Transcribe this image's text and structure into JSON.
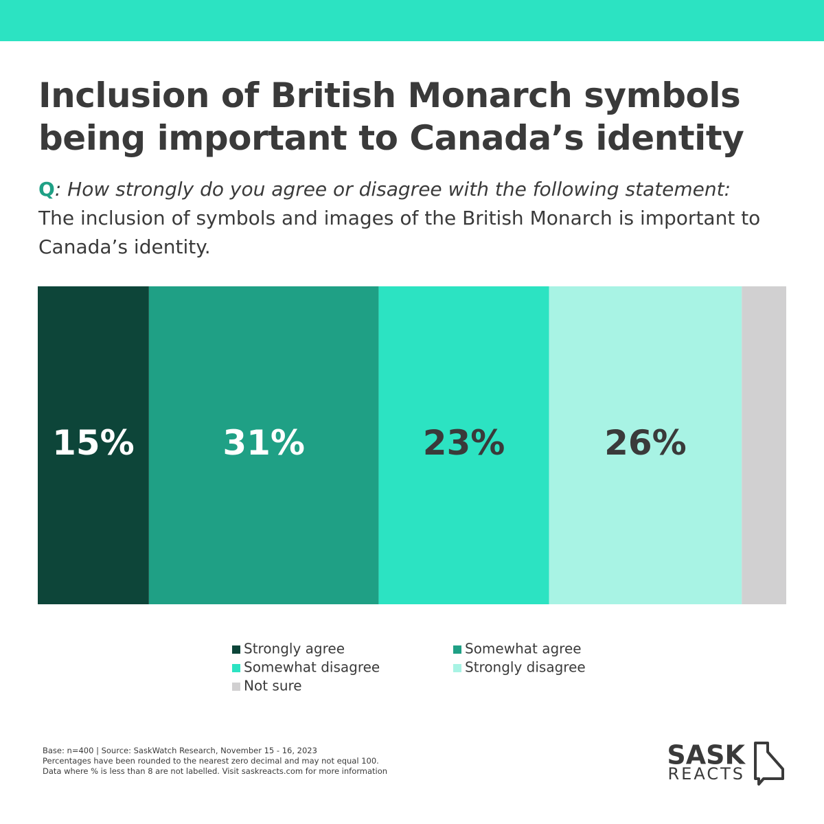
{
  "chart_data": {
    "type": "stacked-bar-100",
    "title": "Inclusion of British Monarch symbols being important to Canada’s identity",
    "question_label": "Q",
    "question": ": How strongly do you agree or disagree with the following statement:",
    "statement": "The inclusion of symbols and images of the British Monarch is important to Canada’s identity.",
    "series": [
      {
        "name": "Strongly agree",
        "color": "#0d4539",
        "label_color": "#ffffff",
        "values": [
          15
        ],
        "value_labels": [
          "15%"
        ]
      },
      {
        "name": "Somewhat agree",
        "color": "#1fa085",
        "label_color": "#ffffff",
        "values": [
          31
        ],
        "value_labels": [
          "31%"
        ]
      },
      {
        "name": "Somewhat disagree",
        "color": "#2ce3c2",
        "label_color": "#3a3a3a",
        "values": [
          23
        ],
        "value_labels": [
          "23%"
        ]
      },
      {
        "name": "Strongly disagree",
        "color": "#a8f3e4",
        "label_color": "#3a3a3a",
        "values": [
          26
        ],
        "value_labels": [
          "26%"
        ]
      },
      {
        "name": "Not sure",
        "color": "#d1d0d1",
        "values": [
          6
        ]
      }
    ],
    "footnotes": [
      "Base: n=400 | Source: SaskWatch Research, November 15 - 16, 2023",
      "Percentages have been rounded to the nearest zero decimal and may not equal 100.",
      "Data where % is less than 8 are not labelled. Visit saskreacts.com for more information"
    ],
    "logo": {
      "line1": "SASK",
      "line2": "REACTS"
    }
  }
}
